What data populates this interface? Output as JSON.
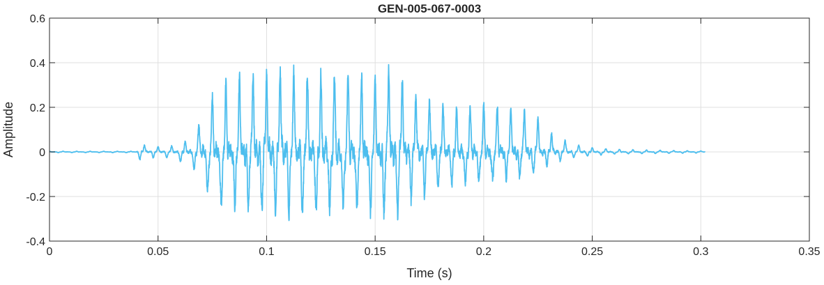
{
  "chart_data": {
    "type": "line",
    "title": "GEN-005-067-0003",
    "xlabel": "Time (s)",
    "ylabel": "Amplitude",
    "xlim": [
      0,
      0.35
    ],
    "ylim": [
      -0.4,
      0.6
    ],
    "xticks": [
      0,
      0.05,
      0.1,
      0.15,
      0.2,
      0.25,
      0.3,
      0.35
    ],
    "xtick_labels": [
      "0",
      "0.05",
      "0.1",
      "0.15",
      "0.2",
      "0.25",
      "0.3",
      "0.35"
    ],
    "yticks": [
      -0.4,
      -0.2,
      0,
      0.2,
      0.4,
      0.6
    ],
    "ytick_labels": [
      "-0.4",
      "-0.2",
      "0",
      "0.2",
      "0.4",
      "0.6"
    ],
    "grid": true,
    "series": [
      {
        "color": "#4DBEEE",
        "signal_end": 0.302,
        "envelope": {
          "t": [
            0,
            0.04,
            0.041,
            0.045,
            0.055,
            0.062,
            0.066,
            0.07,
            0.075,
            0.08,
            0.085,
            0.09,
            0.1,
            0.11,
            0.12,
            0.13,
            0.14,
            0.15,
            0.155,
            0.16,
            0.165,
            0.17,
            0.18,
            0.19,
            0.2,
            0.21,
            0.22,
            0.225,
            0.23,
            0.24,
            0.25,
            0.26,
            0.28,
            0.302
          ],
          "max": [
            0.004,
            0.004,
            0.06,
            0.03,
            0.03,
            0.06,
            0.08,
            0.2,
            0.33,
            0.39,
            0.45,
            0.46,
            0.48,
            0.48,
            0.47,
            0.46,
            0.46,
            0.45,
            0.5,
            0.5,
            0.38,
            0.33,
            0.28,
            0.25,
            0.28,
            0.27,
            0.24,
            0.2,
            0.12,
            0.05,
            0.025,
            0.015,
            0.01,
            0.005
          ],
          "min": [
            -0.004,
            -0.004,
            -0.04,
            -0.03,
            -0.03,
            -0.06,
            -0.08,
            -0.2,
            -0.27,
            -0.32,
            -0.3,
            -0.31,
            -0.32,
            -0.33,
            -0.33,
            -0.34,
            -0.33,
            -0.34,
            -0.33,
            -0.35,
            -0.25,
            -0.23,
            -0.2,
            -0.18,
            -0.18,
            -0.15,
            -0.12,
            -0.1,
            -0.06,
            -0.03,
            -0.02,
            -0.012,
            -0.008,
            -0.005
          ]
        }
      }
    ]
  }
}
